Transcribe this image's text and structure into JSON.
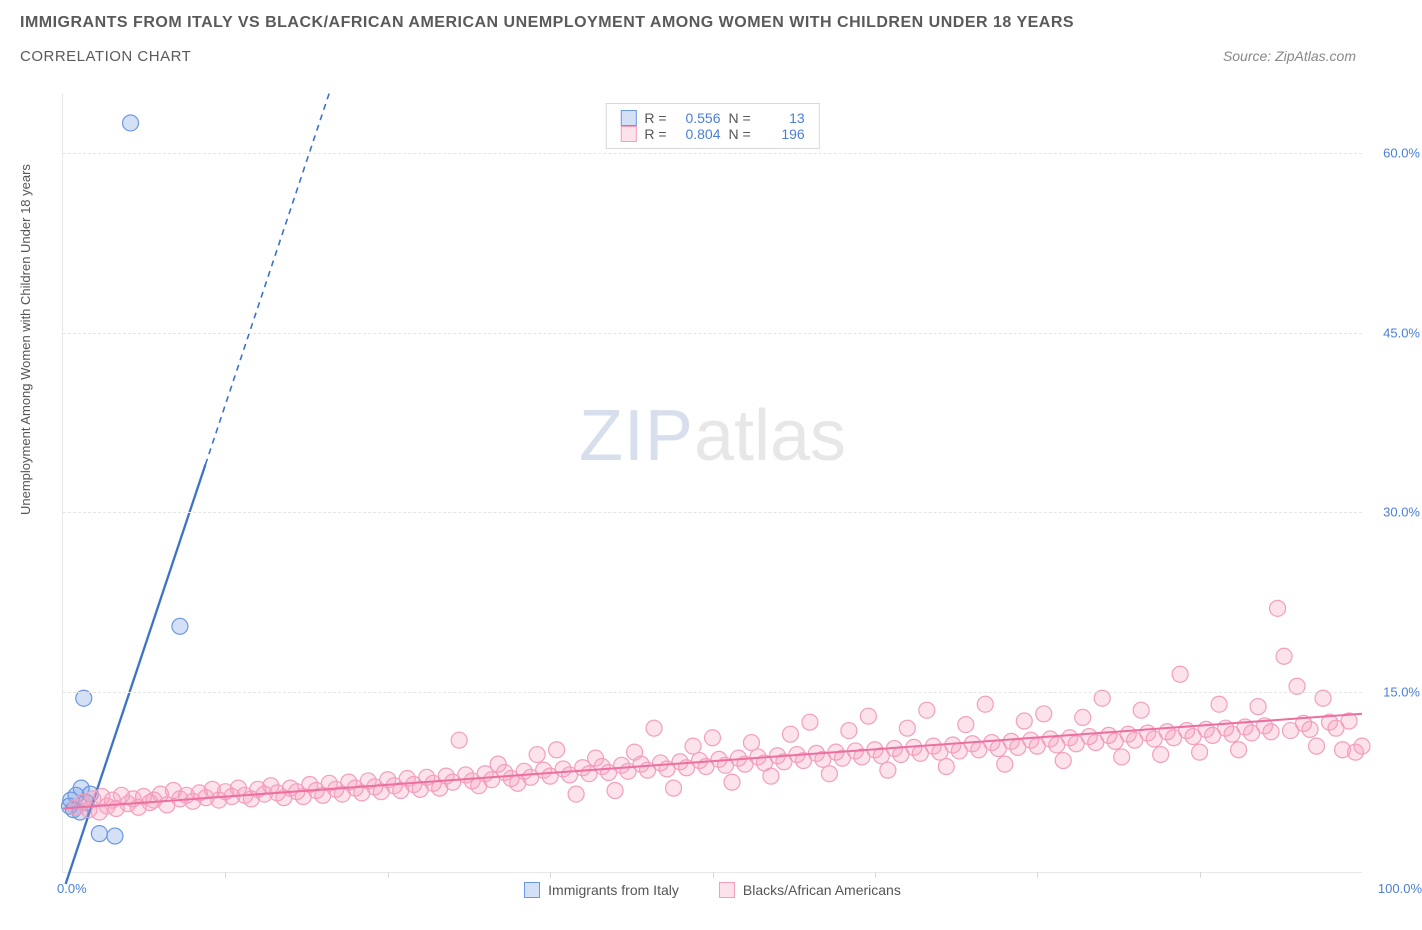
{
  "title": "IMMIGRANTS FROM ITALY VS BLACK/AFRICAN AMERICAN UNEMPLOYMENT AMONG WOMEN WITH CHILDREN UNDER 18 YEARS",
  "subtitle": "CORRELATION CHART",
  "source_label": "Source: ZipAtlas.com",
  "y_axis_label": "Unemployment Among Women with Children Under 18 years",
  "watermark": {
    "left": "ZIP",
    "right": "atlas"
  },
  "chart": {
    "type": "scatter",
    "background_color": "#ffffff",
    "grid_color": "#e5e5e5",
    "axis_color": "#e8e8e8",
    "tick_label_color": "#4a7fd8",
    "xlim": [
      0,
      100
    ],
    "ylim": [
      0,
      65
    ],
    "x_ticks_major": [
      0,
      100
    ],
    "x_tick_labels": [
      "0.0%",
      "100.0%"
    ],
    "x_ticks_minor": [
      12.5,
      25,
      37.5,
      50,
      62.5,
      75,
      87.5
    ],
    "y_ticks": [
      15,
      30,
      45,
      60
    ],
    "y_tick_labels": [
      "15.0%",
      "30.0%",
      "45.0%",
      "60.0%"
    ],
    "label_fontsize": 13,
    "marker_radius": 8,
    "marker_stroke_width": 1.2,
    "series": [
      {
        "name": "Immigrants from Italy",
        "color_fill": "rgba(108,152,224,0.30)",
        "color_stroke": "#6c98e0",
        "R": 0.556,
        "N": 13,
        "trend": {
          "x1": 0.2,
          "y1": -1,
          "x2": 20.5,
          "y2": 65,
          "solid_until_y": 34,
          "width": 2.3,
          "color": "#3d72c9"
        },
        "points": [
          [
            0.5,
            5.5
          ],
          [
            0.6,
            6.0
          ],
          [
            0.8,
            5.2
          ],
          [
            1.0,
            6.4
          ],
          [
            1.3,
            5.0
          ],
          [
            1.8,
            5.8
          ],
          [
            2.8,
            3.2
          ],
          [
            4.0,
            3.0
          ],
          [
            1.6,
            14.5
          ],
          [
            1.4,
            7.0
          ],
          [
            2.1,
            6.5
          ],
          [
            9.0,
            20.5
          ],
          [
            5.2,
            62.5
          ]
        ]
      },
      {
        "name": "Blacks/African Americans",
        "color_fill": "rgba(244,158,190,0.30)",
        "color_stroke": "#f49ebe",
        "R": 0.804,
        "N": 196,
        "trend": {
          "x1": 0,
          "y1": 5.3,
          "x2": 100,
          "y2": 13.2,
          "solid_until_y": 13.2,
          "width": 2.0,
          "color": "#ec6fa0"
        },
        "points": [
          [
            1,
            5.4
          ],
          [
            1.5,
            5.8
          ],
          [
            2,
            5.2
          ],
          [
            2.3,
            6.1
          ],
          [
            2.8,
            5.0
          ],
          [
            3,
            6.3
          ],
          [
            3.4,
            5.5
          ],
          [
            3.8,
            6.0
          ],
          [
            4.1,
            5.3
          ],
          [
            4.5,
            6.4
          ],
          [
            5,
            5.7
          ],
          [
            5.4,
            6.1
          ],
          [
            5.8,
            5.4
          ],
          [
            6.2,
            6.3
          ],
          [
            6.7,
            5.8
          ],
          [
            7,
            6.0
          ],
          [
            7.5,
            6.5
          ],
          [
            8,
            5.6
          ],
          [
            8.5,
            6.8
          ],
          [
            9,
            6.1
          ],
          [
            9.5,
            6.4
          ],
          [
            10,
            5.9
          ],
          [
            10.5,
            6.6
          ],
          [
            11,
            6.2
          ],
          [
            11.5,
            6.9
          ],
          [
            12,
            6.0
          ],
          [
            12.5,
            6.7
          ],
          [
            13,
            6.3
          ],
          [
            13.5,
            7.0
          ],
          [
            14,
            6.4
          ],
          [
            14.5,
            6.1
          ],
          [
            15,
            6.9
          ],
          [
            15.5,
            6.5
          ],
          [
            16,
            7.2
          ],
          [
            16.5,
            6.6
          ],
          [
            17,
            6.2
          ],
          [
            17.5,
            7.0
          ],
          [
            18,
            6.7
          ],
          [
            18.5,
            6.3
          ],
          [
            19,
            7.3
          ],
          [
            19.5,
            6.8
          ],
          [
            20,
            6.4
          ],
          [
            20.5,
            7.4
          ],
          [
            21,
            6.9
          ],
          [
            21.5,
            6.5
          ],
          [
            22,
            7.5
          ],
          [
            22.5,
            7.0
          ],
          [
            23,
            6.6
          ],
          [
            23.5,
            7.6
          ],
          [
            24,
            7.1
          ],
          [
            24.5,
            6.7
          ],
          [
            25,
            7.7
          ],
          [
            25.5,
            7.2
          ],
          [
            26,
            6.8
          ],
          [
            26.5,
            7.8
          ],
          [
            27,
            7.3
          ],
          [
            27.5,
            6.9
          ],
          [
            28,
            7.9
          ],
          [
            28.5,
            7.4
          ],
          [
            29,
            7.0
          ],
          [
            29.5,
            8.0
          ],
          [
            30,
            7.5
          ],
          [
            30.5,
            11.0
          ],
          [
            31,
            8.1
          ],
          [
            31.5,
            7.6
          ],
          [
            32,
            7.2
          ],
          [
            32.5,
            8.2
          ],
          [
            33,
            7.7
          ],
          [
            33.5,
            9.0
          ],
          [
            34,
            8.3
          ],
          [
            34.5,
            7.8
          ],
          [
            35,
            7.4
          ],
          [
            35.5,
            8.4
          ],
          [
            36,
            7.9
          ],
          [
            36.5,
            9.8
          ],
          [
            37,
            8.5
          ],
          [
            37.5,
            8.0
          ],
          [
            38,
            10.2
          ],
          [
            38.5,
            8.6
          ],
          [
            39,
            8.1
          ],
          [
            39.5,
            6.5
          ],
          [
            40,
            8.7
          ],
          [
            40.5,
            8.2
          ],
          [
            41,
            9.5
          ],
          [
            41.5,
            8.8
          ],
          [
            42,
            8.3
          ],
          [
            42.5,
            6.8
          ],
          [
            43,
            8.9
          ],
          [
            43.5,
            8.4
          ],
          [
            44,
            10.0
          ],
          [
            44.5,
            9.0
          ],
          [
            45,
            8.5
          ],
          [
            45.5,
            12.0
          ],
          [
            46,
            9.1
          ],
          [
            46.5,
            8.6
          ],
          [
            47,
            7.0
          ],
          [
            47.5,
            9.2
          ],
          [
            48,
            8.7
          ],
          [
            48.5,
            10.5
          ],
          [
            49,
            9.3
          ],
          [
            49.5,
            8.8
          ],
          [
            50,
            11.2
          ],
          [
            50.5,
            9.4
          ],
          [
            51,
            8.9
          ],
          [
            51.5,
            7.5
          ],
          [
            52,
            9.5
          ],
          [
            52.5,
            9.0
          ],
          [
            53,
            10.8
          ],
          [
            53.5,
            9.6
          ],
          [
            54,
            9.1
          ],
          [
            54.5,
            8.0
          ],
          [
            55,
            9.7
          ],
          [
            55.5,
            9.2
          ],
          [
            56,
            11.5
          ],
          [
            56.5,
            9.8
          ],
          [
            57,
            9.3
          ],
          [
            57.5,
            12.5
          ],
          [
            58,
            9.9
          ],
          [
            58.5,
            9.4
          ],
          [
            59,
            8.2
          ],
          [
            59.5,
            10.0
          ],
          [
            60,
            9.5
          ],
          [
            60.5,
            11.8
          ],
          [
            61,
            10.1
          ],
          [
            61.5,
            9.6
          ],
          [
            62,
            13.0
          ],
          [
            62.5,
            10.2
          ],
          [
            63,
            9.7
          ],
          [
            63.5,
            8.5
          ],
          [
            64,
            10.3
          ],
          [
            64.5,
            9.8
          ],
          [
            65,
            12.0
          ],
          [
            65.5,
            10.4
          ],
          [
            66,
            9.9
          ],
          [
            66.5,
            13.5
          ],
          [
            67,
            10.5
          ],
          [
            67.5,
            10.0
          ],
          [
            68,
            8.8
          ],
          [
            68.5,
            10.6
          ],
          [
            69,
            10.1
          ],
          [
            69.5,
            12.3
          ],
          [
            70,
            10.7
          ],
          [
            70.5,
            10.2
          ],
          [
            71,
            14.0
          ],
          [
            71.5,
            10.8
          ],
          [
            72,
            10.3
          ],
          [
            72.5,
            9.0
          ],
          [
            73,
            10.9
          ],
          [
            73.5,
            10.4
          ],
          [
            74,
            12.6
          ],
          [
            74.5,
            11.0
          ],
          [
            75,
            10.5
          ],
          [
            75.5,
            13.2
          ],
          [
            76,
            11.1
          ],
          [
            76.5,
            10.6
          ],
          [
            77,
            9.3
          ],
          [
            77.5,
            11.2
          ],
          [
            78,
            10.7
          ],
          [
            78.5,
            12.9
          ],
          [
            79,
            11.3
          ],
          [
            79.5,
            10.8
          ],
          [
            80,
            14.5
          ],
          [
            80.5,
            11.4
          ],
          [
            81,
            10.9
          ],
          [
            81.5,
            9.6
          ],
          [
            82,
            11.5
          ],
          [
            82.5,
            11.0
          ],
          [
            83,
            13.5
          ],
          [
            83.5,
            11.6
          ],
          [
            84,
            11.1
          ],
          [
            84.5,
            9.8
          ],
          [
            85,
            11.7
          ],
          [
            85.5,
            11.2
          ],
          [
            86,
            16.5
          ],
          [
            86.5,
            11.8
          ],
          [
            87,
            11.3
          ],
          [
            87.5,
            10.0
          ],
          [
            88,
            11.9
          ],
          [
            88.5,
            11.4
          ],
          [
            89,
            14.0
          ],
          [
            89.5,
            12.0
          ],
          [
            90,
            11.5
          ],
          [
            90.5,
            10.2
          ],
          [
            91,
            12.1
          ],
          [
            91.5,
            11.6
          ],
          [
            92,
            13.8
          ],
          [
            92.5,
            12.2
          ],
          [
            93,
            11.7
          ],
          [
            93.5,
            22.0
          ],
          [
            94,
            18.0
          ],
          [
            94.5,
            11.8
          ],
          [
            95,
            15.5
          ],
          [
            95.5,
            12.4
          ],
          [
            96,
            11.9
          ],
          [
            96.5,
            10.5
          ],
          [
            97,
            14.5
          ],
          [
            97.5,
            12.5
          ],
          [
            98,
            12.0
          ],
          [
            98.5,
            10.2
          ],
          [
            99,
            12.6
          ],
          [
            99.5,
            10.0
          ],
          [
            100,
            10.5
          ]
        ]
      }
    ]
  },
  "legend_top": {
    "r_label": "R =",
    "n_label": "N ="
  },
  "legend_bottom": [
    {
      "label": "Immigrants from Italy",
      "fill": "rgba(108,152,224,0.30)",
      "stroke": "#6c98e0"
    },
    {
      "label": "Blacks/African Americans",
      "fill": "rgba(244,158,190,0.30)",
      "stroke": "#f49ebe"
    }
  ]
}
